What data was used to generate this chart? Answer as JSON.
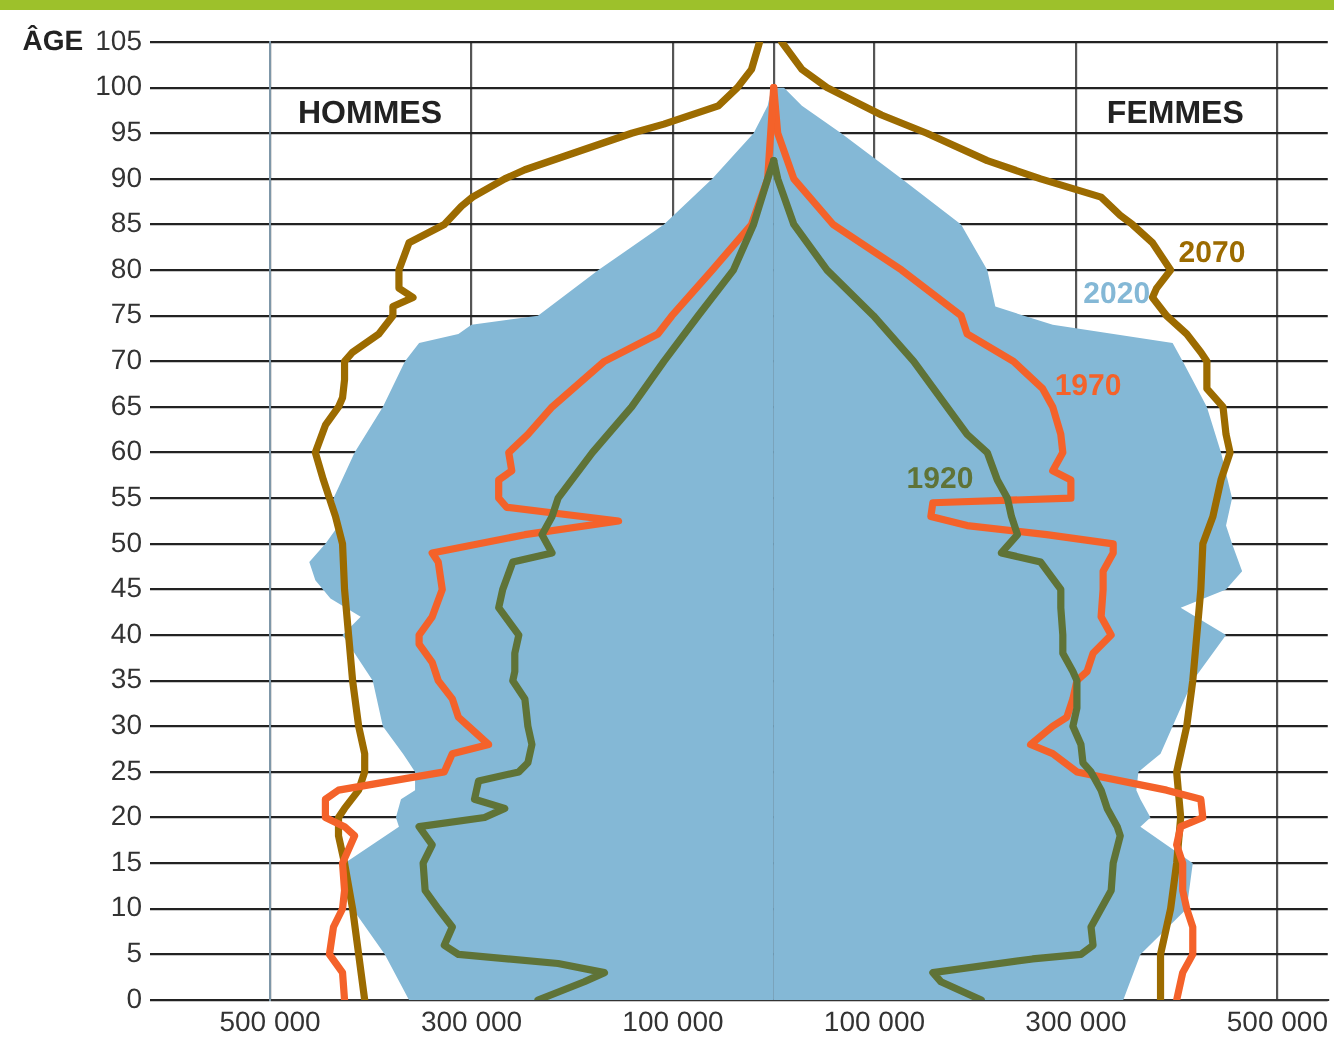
{
  "chart_data": {
    "type": "line",
    "orientation": "horizontal",
    "ylabel": "ÂGE",
    "annotations": [
      "HOMMES",
      "FEMMES"
    ],
    "xlim": [
      -500000,
      550000
    ],
    "xticks": [
      {
        "value": -500000,
        "label": "500 000"
      },
      {
        "value": -300000,
        "label": "300 000"
      },
      {
        "value": -100000,
        "label": "100 000"
      },
      {
        "value": 0,
        "label": null
      },
      {
        "value": 100000,
        "label": "100 000"
      },
      {
        "value": 300000,
        "label": "300 000"
      },
      {
        "value": 500000,
        "label": "500 000"
      }
    ],
    "ylim": [
      0,
      105
    ],
    "yticks": [
      0,
      5,
      10,
      15,
      20,
      25,
      30,
      35,
      40,
      45,
      50,
      55,
      60,
      65,
      70,
      75,
      80,
      85,
      90,
      95,
      100,
      105
    ],
    "grid": true,
    "legend": false,
    "series": [
      {
        "type": "area",
        "color": "#84b8d6",
        "x": [
          0,
          5,
          10,
          15,
          19,
          20,
          22,
          23,
          25,
          27,
          30,
          35,
          40,
          42,
          44,
          46,
          48,
          50,
          52,
          55,
          60,
          65,
          70,
          72,
          73,
          74,
          75,
          80,
          85,
          90,
          95,
          98,
          100
        ],
        "values": [
          -362000,
          -386000,
          -418000,
          -426000,
          -372000,
          -375000,
          -370000,
          -356000,
          -356000,
          -368000,
          -388000,
          -398000,
          -428000,
          -410000,
          -440000,
          -455000,
          -461000,
          -445000,
          -432000,
          -437000,
          -416000,
          -388000,
          -366000,
          -352000,
          -313000,
          -300000,
          -234000,
          -174000,
          -109000,
          -61000,
          -20000,
          -6000,
          -2000
        ]
      },
      {
        "type": "area",
        "name": "2020",
        "color": "#84b8d6",
        "x": [
          0,
          5,
          10,
          15,
          19,
          20,
          22,
          23,
          25,
          27,
          30,
          35,
          40,
          43,
          45,
          47,
          50,
          52,
          55,
          60,
          65,
          70,
          72,
          74,
          76,
          80,
          85,
          90,
          95,
          98,
          100
        ],
        "values": [
          347000,
          364000,
          410000,
          416000,
          364000,
          374000,
          364000,
          360000,
          362000,
          384000,
          396000,
          416000,
          449000,
          404000,
          449000,
          465000,
          455000,
          449000,
          455000,
          444000,
          430000,
          406000,
          396000,
          277000,
          220000,
          212000,
          186000,
          127000,
          67000,
          28000,
          10000
        ]
      },
      {
        "color": "#5f7337",
        "x": [
          0,
          2,
          3,
          4,
          5,
          6,
          8,
          10,
          12,
          15,
          17,
          19,
          20,
          21,
          22,
          24,
          25,
          26,
          28,
          30,
          33,
          35,
          36,
          38,
          40,
          43,
          45,
          48,
          49,
          51,
          53,
          55,
          60,
          65,
          70,
          75,
          80,
          85,
          90,
          92
        ],
        "values": [
          -234000,
          -188000,
          -168000,
          -214000,
          -313000,
          -327000,
          -319000,
          -333000,
          -346000,
          -348000,
          -339000,
          -352000,
          -287000,
          -267000,
          -297000,
          -293000,
          -253000,
          -244000,
          -240000,
          -244000,
          -247000,
          -259000,
          -257000,
          -257000,
          -253000,
          -273000,
          -269000,
          -259000,
          -220000,
          -230000,
          -220000,
          -214000,
          -180000,
          -141000,
          -109000,
          -75000,
          -40000,
          -20000,
          -6000,
          0
        ]
      },
      {
        "name": "1920",
        "color": "#5f7337",
        "x": [
          0,
          2,
          3,
          4.5,
          5,
          6,
          8,
          10,
          12,
          15,
          18,
          19,
          21,
          23,
          25,
          26,
          28,
          30,
          32,
          35,
          36,
          38,
          40,
          43,
          45,
          48,
          49,
          51,
          53,
          55,
          57,
          60,
          62,
          65,
          70,
          75,
          80,
          85,
          90,
          92
        ],
        "values": [
          206000,
          166000,
          158000,
          257000,
          305000,
          317000,
          315000,
          325000,
          335000,
          337000,
          344000,
          341000,
          331000,
          325000,
          315000,
          307000,
          305000,
          297000,
          301000,
          301000,
          297000,
          287000,
          287000,
          285000,
          285000,
          265000,
          226000,
          242000,
          236000,
          232000,
          222000,
          212000,
          192000,
          172000,
          139000,
          99000,
          53000,
          20000,
          4000,
          0
        ]
      },
      {
        "color": "#f4622a",
        "x": [
          0,
          3,
          5,
          8,
          10,
          12,
          15,
          18,
          19,
          20,
          22,
          23,
          25,
          27,
          28,
          30,
          31,
          33,
          35,
          37,
          39,
          40,
          42,
          45,
          48,
          49,
          51,
          52.5,
          54,
          55,
          57,
          58,
          60,
          62,
          65,
          70,
          73,
          75,
          80,
          85,
          90,
          100
        ],
        "values": [
          -426000,
          -428000,
          -441000,
          -437000,
          -428000,
          -426000,
          -428000,
          -416000,
          -426000,
          -445000,
          -445000,
          -432000,
          -327000,
          -319000,
          -283000,
          -303000,
          -313000,
          -319000,
          -333000,
          -339000,
          -352000,
          -352000,
          -339000,
          -329000,
          -333000,
          -339000,
          -247000,
          -154000,
          -265000,
          -273000,
          -273000,
          -260000,
          -263000,
          -244000,
          -220000,
          -168000,
          -115000,
          -101000,
          -61000,
          -22000,
          -6000,
          0
        ]
      },
      {
        "name": "1970",
        "color": "#f4622a",
        "x": [
          0,
          3,
          5,
          8,
          10,
          12,
          15,
          17,
          19,
          20,
          22,
          23,
          25,
          27,
          28,
          30,
          31,
          33,
          35,
          36,
          38,
          40,
          42,
          45,
          47,
          49,
          50,
          51,
          52,
          53,
          54.5,
          55,
          57,
          58,
          60,
          62,
          65,
          67,
          70,
          73,
          75,
          80,
          85,
          90,
          95,
          100
        ],
        "values": [
          400000,
          406000,
          416000,
          416000,
          410000,
          406000,
          406000,
          400000,
          404000,
          426000,
          424000,
          390000,
          301000,
          277000,
          255000,
          277000,
          291000,
          297000,
          301000,
          311000,
          317000,
          335000,
          325000,
          327000,
          327000,
          337000,
          337000,
          271000,
          192000,
          156000,
          158000,
          295000,
          295000,
          277000,
          287000,
          285000,
          277000,
          267000,
          238000,
          192000,
          186000,
          127000,
          59000,
          20000,
          4000,
          0
        ]
      },
      {
        "color": "#9c6b00",
        "x": [
          0,
          5,
          10,
          15,
          18,
          20,
          21,
          23,
          25,
          27,
          30,
          35,
          40,
          45,
          50,
          53,
          55,
          57,
          60,
          63,
          65,
          66,
          68,
          70,
          71,
          73,
          75,
          76,
          77,
          78,
          80,
          83,
          85,
          87,
          88,
          90,
          91,
          93,
          95,
          96,
          98,
          100,
          102,
          105
        ],
        "values": [
          -406000,
          -412000,
          -418000,
          -426000,
          -432000,
          -432000,
          -426000,
          -412000,
          -406000,
          -406000,
          -412000,
          -418000,
          -422000,
          -426000,
          -428000,
          -435000,
          -441000,
          -447000,
          -455000,
          -445000,
          -432000,
          -428000,
          -426000,
          -426000,
          -418000,
          -392000,
          -378000,
          -378000,
          -358000,
          -372000,
          -372000,
          -362000,
          -327000,
          -310000,
          -299000,
          -267000,
          -247000,
          -194000,
          -141000,
          -109000,
          -55000,
          -36000,
          -22000,
          -14000
        ]
      },
      {
        "name": "2070",
        "color": "#9c6b00",
        "x": [
          0,
          5,
          10,
          15,
          20,
          25,
          27,
          30,
          35,
          40,
          45,
          50,
          53,
          55,
          57,
          60,
          62,
          65,
          67,
          70,
          71,
          73,
          75,
          77,
          78,
          80,
          83,
          85,
          86,
          88,
          90,
          92,
          95,
          97,
          100,
          102,
          105
        ],
        "values": [
          384000,
          384000,
          394000,
          400000,
          404000,
          400000,
          404000,
          410000,
          416000,
          420000,
          424000,
          426000,
          436000,
          440000,
          444000,
          453000,
          449000,
          446000,
          430000,
          430000,
          424000,
          410000,
          390000,
          376000,
          380000,
          394000,
          376000,
          356000,
          344000,
          325000,
          265000,
          212000,
          152000,
          107000,
          53000,
          28000,
          8000
        ]
      }
    ]
  }
}
